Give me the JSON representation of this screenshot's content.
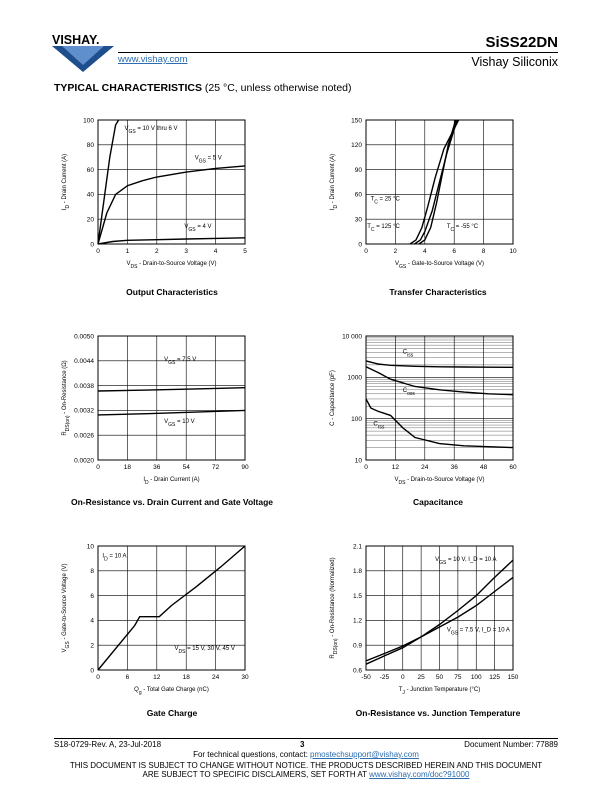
{
  "header": {
    "brand": "VISHAY.",
    "url": "www.vishay.com",
    "part_number": "SiSS22DN",
    "manufacturer": "Vishay Siliconix"
  },
  "section": {
    "title": "TYPICAL CHARACTERISTICS",
    "note": "(25 °C, unless otherwise noted)"
  },
  "captions": {
    "c1": "Output Characteristics",
    "c2": "Transfer Characteristics",
    "c3": "On-Resistance vs. Drain Current and Gate Voltage",
    "c4": "Capacitance",
    "c5": "Gate Charge",
    "c6": "On-Resistance vs. Junction Temperature"
  },
  "chart_data": [
    {
      "type": "line",
      "xlabel": "V_DS - Drain-to-Source Voltage (V)",
      "ylabel": "I_D - Drain Current (A)",
      "xlim": [
        0,
        5
      ],
      "ylim": [
        0,
        100
      ],
      "xticks": [
        "0",
        "1",
        "2",
        "3",
        "4",
        "5"
      ],
      "yticks": [
        "0",
        "20",
        "40",
        "60",
        "80",
        "100"
      ],
      "series": [
        {
          "name": "V_GS = 10 V thru 6 V",
          "x": [
            0,
            0.2,
            0.4,
            0.6,
            0.7
          ],
          "y": [
            0,
            35,
            70,
            96,
            100
          ]
        },
        {
          "name": "V_GS = 5 V",
          "x": [
            0,
            0.3,
            0.6,
            1,
            1.5,
            2,
            3,
            4,
            5
          ],
          "y": [
            0,
            25,
            40,
            47,
            51,
            54,
            58,
            61,
            63
          ]
        },
        {
          "name": "V_GS = 4 V",
          "x": [
            0,
            0.5,
            1,
            2,
            3,
            4,
            5
          ],
          "y": [
            0,
            2,
            3,
            3.5,
            4,
            4.5,
            5
          ]
        }
      ]
    },
    {
      "type": "line",
      "xlabel": "V_GS - Gate-to-Source Voltage (V)",
      "ylabel": "I_D - Drain Current (A)",
      "xlim": [
        0,
        10
      ],
      "ylim": [
        0,
        150
      ],
      "xticks": [
        "0",
        "2",
        "4",
        "6",
        "8",
        "10"
      ],
      "yticks": [
        "0",
        "30",
        "60",
        "90",
        "120",
        "150"
      ],
      "series": [
        {
          "name": "T_C = 25 °C",
          "x": [
            3.3,
            3.7,
            4,
            4.5,
            5,
            5.5,
            6.2
          ],
          "y": [
            0,
            5,
            15,
            40,
            75,
            110,
            150
          ]
        },
        {
          "name": "T_C = 125 °C",
          "x": [
            3,
            3.4,
            3.8,
            4.2,
            4.7,
            5.3,
            6.3
          ],
          "y": [
            0,
            5,
            20,
            45,
            80,
            115,
            150
          ]
        },
        {
          "name": "T_C = -55 °C",
          "x": [
            3.6,
            4,
            4.4,
            4.8,
            5.2,
            5.6,
            6.1
          ],
          "y": [
            0,
            5,
            20,
            50,
            85,
            120,
            150
          ]
        }
      ]
    },
    {
      "type": "line",
      "xlabel": "I_D - Drain Current (A)",
      "ylabel": "R_DS(on) - On-Resistance (Ω)",
      "xlim": [
        0,
        90
      ],
      "ylim": [
        0.002,
        0.005
      ],
      "xticks": [
        "0",
        "18",
        "36",
        "54",
        "72",
        "90"
      ],
      "yticks": [
        "0.0020",
        "0.0026",
        "0.0032",
        "0.0038",
        "0.0044",
        "0.0050"
      ],
      "series": [
        {
          "name": "V_GS = 7.5 V",
          "x": [
            0,
            30,
            60,
            90
          ],
          "y": [
            0.00367,
            0.00369,
            0.00372,
            0.00375
          ]
        },
        {
          "name": "V_GS = 10 V",
          "x": [
            0,
            30,
            60,
            90
          ],
          "y": [
            0.00309,
            0.00312,
            0.00316,
            0.0032
          ]
        }
      ]
    },
    {
      "type": "line",
      "xlabel": "V_DS - Drain-to-Source Voltage (V)",
      "ylabel": "C - Capacitance (pF)",
      "xlim": [
        0,
        60
      ],
      "ylim": [
        10,
        10000
      ],
      "yscale": "log",
      "xticks": [
        "0",
        "12",
        "24",
        "36",
        "48",
        "60"
      ],
      "yticks": [
        "10",
        "100",
        "1000",
        "10 000"
      ],
      "series": [
        {
          "name": "C_iss",
          "x": [
            0,
            5,
            10,
            20,
            30,
            40,
            50,
            60
          ],
          "y": [
            2500,
            2100,
            1950,
            1850,
            1800,
            1780,
            1760,
            1750
          ]
        },
        {
          "name": "C_oss",
          "x": [
            0,
            5,
            10,
            20,
            30,
            40,
            50,
            60
          ],
          "y": [
            1800,
            1300,
            900,
            600,
            500,
            440,
            400,
            380
          ]
        },
        {
          "name": "C_rss",
          "x": [
            0,
            2,
            5,
            10,
            15,
            20,
            30,
            40,
            50,
            60
          ],
          "y": [
            300,
            180,
            150,
            120,
            60,
            35,
            25,
            22,
            21,
            20
          ]
        }
      ]
    },
    {
      "type": "line",
      "xlabel": "Q_g - Total Gate Charge (nC)",
      "ylabel": "V_GS - Gate-to-Source Voltage (V)",
      "xlim": [
        0,
        30
      ],
      "ylim": [
        0,
        10
      ],
      "xticks": [
        "0",
        "6",
        "12",
        "18",
        "24",
        "30"
      ],
      "yticks": [
        "0",
        "2",
        "4",
        "6",
        "8",
        "10"
      ],
      "annotation": "I_D = 10 A",
      "series": [
        {
          "name": "V_DS = 15 V, 30 V, 45 V",
          "x": [
            0,
            7.5,
            8.5,
            12.5,
            15,
            20,
            25,
            30
          ],
          "y": [
            0,
            3.6,
            4.3,
            4.3,
            5.2,
            6.7,
            8.3,
            10
          ]
        }
      ]
    },
    {
      "type": "line",
      "xlabel": "T_J - Junction Temperature (°C)",
      "ylabel": "R_DS(on) - On-Resistance (Normalized)",
      "xlim": [
        -50,
        150
      ],
      "ylim": [
        0.6,
        2.1
      ],
      "xticks": [
        "-50",
        "-25",
        "0",
        "25",
        "50",
        "75",
        "100",
        "125",
        "150"
      ],
      "yticks": [
        "0.6",
        "0.9",
        "1.2",
        "1.5",
        "1.8",
        "2.1"
      ],
      "series": [
        {
          "name": "V_GS = 10 V, I_D = 10 A",
          "x": [
            -50,
            -25,
            0,
            25,
            50,
            75,
            100,
            125,
            150
          ],
          "y": [
            0.67,
            0.77,
            0.87,
            1.0,
            1.15,
            1.32,
            1.5,
            1.72,
            1.93
          ]
        },
        {
          "name": "V_GS = 7.5 V, I_D = 10 A",
          "x": [
            -50,
            -25,
            0,
            25,
            50,
            75,
            100,
            125,
            150
          ],
          "y": [
            0.71,
            0.8,
            0.89,
            1.0,
            1.12,
            1.24,
            1.38,
            1.55,
            1.72
          ]
        }
      ]
    }
  ],
  "footer": {
    "revision": "S18-0729-Rev. A, 23-Jul-2018",
    "page": "3",
    "doc_number": "Document Number: 77889",
    "contact_prefix": "For technical questions, contact: ",
    "contact_email": "pmostechsupport@vishay.com",
    "notice1": "THIS DOCUMENT IS SUBJECT TO CHANGE WITHOUT NOTICE. THE PRODUCTS DESCRIBED HEREIN AND THIS DOCUMENT",
    "notice2_prefix": "ARE SUBJECT TO SPECIFIC DISCLAIMERS, SET FORTH AT ",
    "notice2_link": "www.vishay.com/doc?91000"
  }
}
